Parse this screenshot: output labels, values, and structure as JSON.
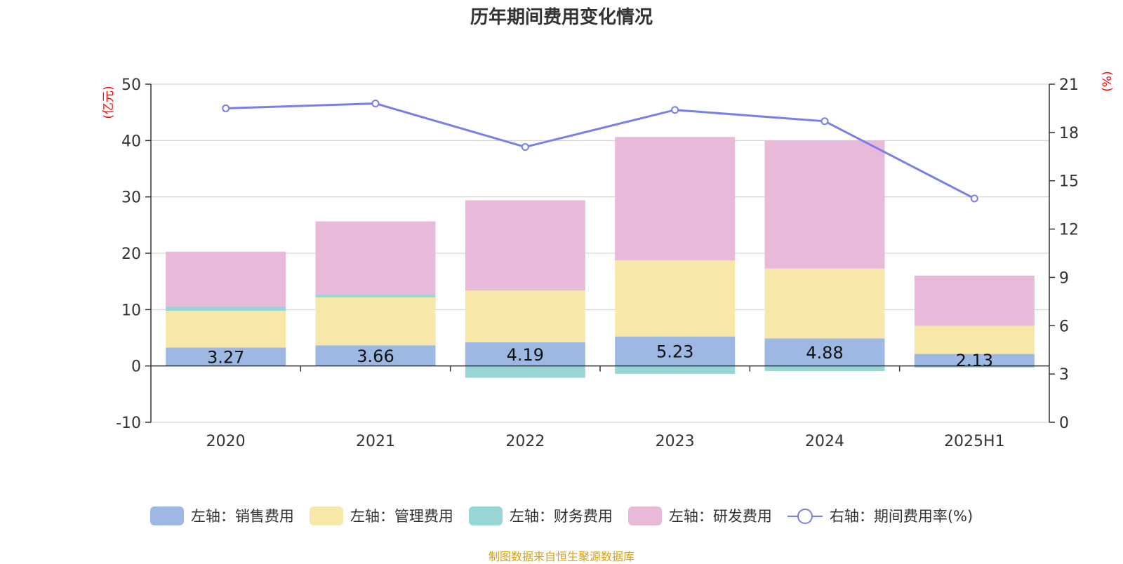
{
  "chart_data": {
    "type": "bar",
    "title": "历年期间费用变化情况",
    "categories": [
      "2020",
      "2021",
      "2022",
      "2023",
      "2024",
      "2025H1"
    ],
    "left_axis": {
      "label": "(亿元)",
      "ticks": [
        "50",
        "40",
        "30",
        "20",
        "10",
        "0",
        "-10"
      ],
      "range": [
        -10,
        50
      ]
    },
    "right_axis": {
      "label": "(%)",
      "ticks": [
        "21",
        "18",
        "15",
        "12",
        "9",
        "6",
        "3",
        "0"
      ],
      "range": [
        0,
        21
      ]
    },
    "series": [
      {
        "name": "左轴：销售费用",
        "color": "#9db8e2",
        "values": [
          3.27,
          3.66,
          4.19,
          5.23,
          4.88,
          2.13
        ],
        "labels": [
          "3.27",
          "3.66",
          "4.19",
          "5.23",
          "4.88",
          "2.13"
        ]
      },
      {
        "name": "左轴：管理费用",
        "color": "#f8e8a8",
        "values": [
          6.5,
          8.5,
          9.2,
          13.5,
          12.4,
          5.0
        ]
      },
      {
        "name": "左轴：财务费用",
        "color": "#98d5d5",
        "values": [
          0.8,
          0.5,
          -2.1,
          -1.4,
          -0.9,
          -0.3
        ]
      },
      {
        "name": "左轴：研发费用",
        "color": "#e8b9d9",
        "values": [
          9.7,
          13.0,
          16.0,
          21.9,
          22.7,
          8.9
        ]
      }
    ],
    "line": {
      "name": "右轴：期间费用率(%)",
      "color": "#7a7fe8",
      "values": [
        19.5,
        19.8,
        17.1,
        19.4,
        18.7,
        13.9
      ]
    },
    "grid": true,
    "legend_position": "bottom"
  },
  "source": "制图数据来自恒生聚源数据库"
}
